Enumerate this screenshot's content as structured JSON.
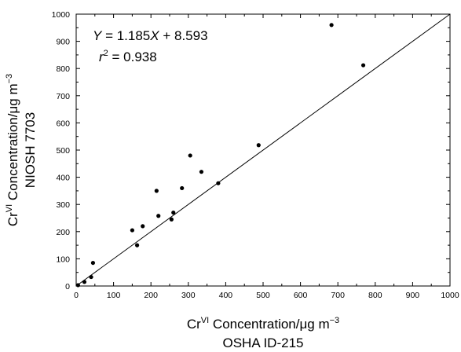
{
  "chart_data": {
    "type": "scatter",
    "title": "",
    "xlabel": {
      "line1_prefix": "Cr",
      "line1_sup": "VI",
      "line1_suffix": " Concentration/μg m",
      "line1_exp": "−3",
      "line2": "OSHA ID-215"
    },
    "ylabel": {
      "line1_prefix": "Cr",
      "line1_sup": "VI",
      "line1_suffix": " Concentration/μg m",
      "line1_exp": "−3",
      "line2": "NIOSH 7703"
    },
    "xlim": [
      0,
      1000
    ],
    "ylim": [
      0,
      1000
    ],
    "xticks": [
      "0",
      "100",
      "200",
      "300",
      "400",
      "500",
      "600",
      "700",
      "800",
      "900",
      "1000"
    ],
    "yticks": [
      "0",
      "100",
      "200",
      "300",
      "400",
      "500",
      "600",
      "700",
      "800",
      "900",
      "1000"
    ],
    "grid": false,
    "reference_line": {
      "from": [
        0,
        0
      ],
      "to": [
        1000,
        1000
      ]
    },
    "annotation": {
      "eq_y": "Y",
      "eq_mid": " = 1.185",
      "eq_x": "X",
      "eq_tail": " + 8.593",
      "r2_r": "r",
      "r2_exp": "2",
      "r2_tail": " = 0.938"
    },
    "points": [
      {
        "x": 5,
        "y": 3
      },
      {
        "x": 22,
        "y": 15
      },
      {
        "x": 40,
        "y": 33
      },
      {
        "x": 45,
        "y": 85
      },
      {
        "x": 150,
        "y": 205
      },
      {
        "x": 163,
        "y": 150
      },
      {
        "x": 178,
        "y": 220
      },
      {
        "x": 215,
        "y": 350
      },
      {
        "x": 220,
        "y": 258
      },
      {
        "x": 255,
        "y": 245
      },
      {
        "x": 260,
        "y": 270
      },
      {
        "x": 283,
        "y": 360
      },
      {
        "x": 305,
        "y": 480
      },
      {
        "x": 335,
        "y": 420
      },
      {
        "x": 380,
        "y": 378
      },
      {
        "x": 488,
        "y": 518
      },
      {
        "x": 683,
        "y": 960
      },
      {
        "x": 768,
        "y": 812
      }
    ]
  }
}
